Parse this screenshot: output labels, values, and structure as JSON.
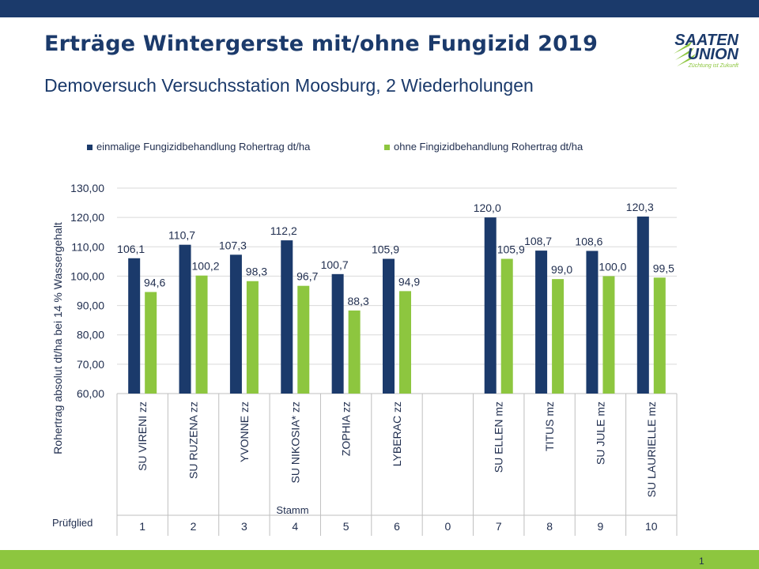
{
  "header": {
    "title": "Erträge Wintergerste mit/ohne Fungizid 2019",
    "subtitle": "Demoversuch Versuchsstation Moosburg, 2 Wiederholungen"
  },
  "logo": {
    "line1": "SAATEN",
    "line2": "UNION",
    "tagline": "Züchtung ist Zukunft"
  },
  "page_number": "1",
  "colors": {
    "dark_blue": "#1b3a6b",
    "green": "#8dc63f",
    "accent_bar": "#1b3a6b"
  },
  "chart_data": {
    "type": "bar",
    "ylabel": "Rohertrag  absolut  dt/ha bei 14 % Wassergehalt",
    "ylim": [
      60,
      130
    ],
    "yticks": [
      "60,00",
      "70,00",
      "80,00",
      "90,00",
      "100,00",
      "110,00",
      "120,00",
      "130,00"
    ],
    "categories": [
      "SU VIRENI zz",
      "SU RUZENA zz",
      "YVONNE zz",
      "SU NIKOSIA* zz",
      "ZOPHIA zz",
      "LYBERAC zz",
      "",
      "SU ELLEN mz",
      "TITUS mz",
      "SU JULE mz",
      "SU LAURIELLE mz"
    ],
    "pruefglied": [
      "1",
      "2",
      "3",
      "4",
      "5",
      "6",
      "0",
      "7",
      "8",
      "9",
      "10"
    ],
    "group_label": "Stamm",
    "row_label": "Prüfglied",
    "legend_position": "top",
    "series": [
      {
        "name": "einmalige Fungizidbehandlung Rohertrag dt/ha",
        "color": "#1b3a6b",
        "values": [
          106.1,
          110.7,
          107.3,
          112.2,
          100.7,
          105.9,
          null,
          120.0,
          108.7,
          108.6,
          120.3
        ],
        "labels": [
          "106,1",
          "110,7",
          "107,3",
          "112,2",
          "100,7",
          "105,9",
          "",
          "120,0",
          "108,7",
          "108,6",
          "120,3"
        ]
      },
      {
        "name": "ohne Fingizidbehandlung Rohertrag dt/ha",
        "color": "#8dc63f",
        "values": [
          94.6,
          100.2,
          98.3,
          96.7,
          88.3,
          94.9,
          null,
          105.9,
          99.0,
          100.0,
          99.5
        ],
        "labels": [
          "94,6",
          "100,2",
          "98,3",
          "96,7",
          "88,3",
          "94,9",
          "",
          "105,9",
          "99,0",
          "100,0",
          "99,5"
        ]
      }
    ]
  }
}
